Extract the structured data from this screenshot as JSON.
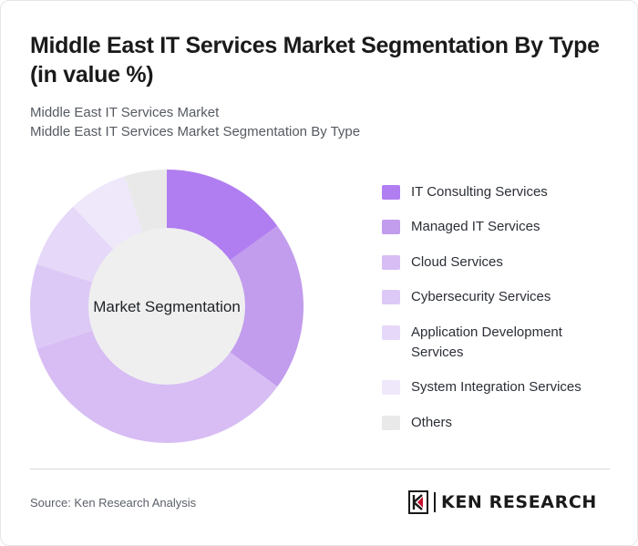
{
  "header": {
    "title": "Middle East IT Services Market Segmentation By Type (in value %)",
    "subtitle_line1": "Middle East IT Services Market",
    "subtitle_line2": "Middle East IT Services Market Segmentation By Type"
  },
  "chart_data": {
    "type": "pie",
    "variant": "donut",
    "center_label": "Market Segmentation",
    "categories": [
      "IT Consulting Services",
      "Managed IT Services",
      "Cloud Services",
      "Cybersecurity Services",
      "Application Development Services",
      "System Integration Services",
      "Others"
    ],
    "values": [
      15,
      20,
      35,
      10,
      8,
      7,
      5
    ],
    "colors": [
      "#b07ef0",
      "#c29ced",
      "#d7bdf4",
      "#ddc9f6",
      "#e6d8f8",
      "#efe7fa",
      "#e9e9e9"
    ],
    "legend_position": "right"
  },
  "footer": {
    "source": "Source: Ken Research Analysis",
    "logo_text": "KEN RESEARCH",
    "logo_icon": "ken-research-k-logo-icon"
  }
}
